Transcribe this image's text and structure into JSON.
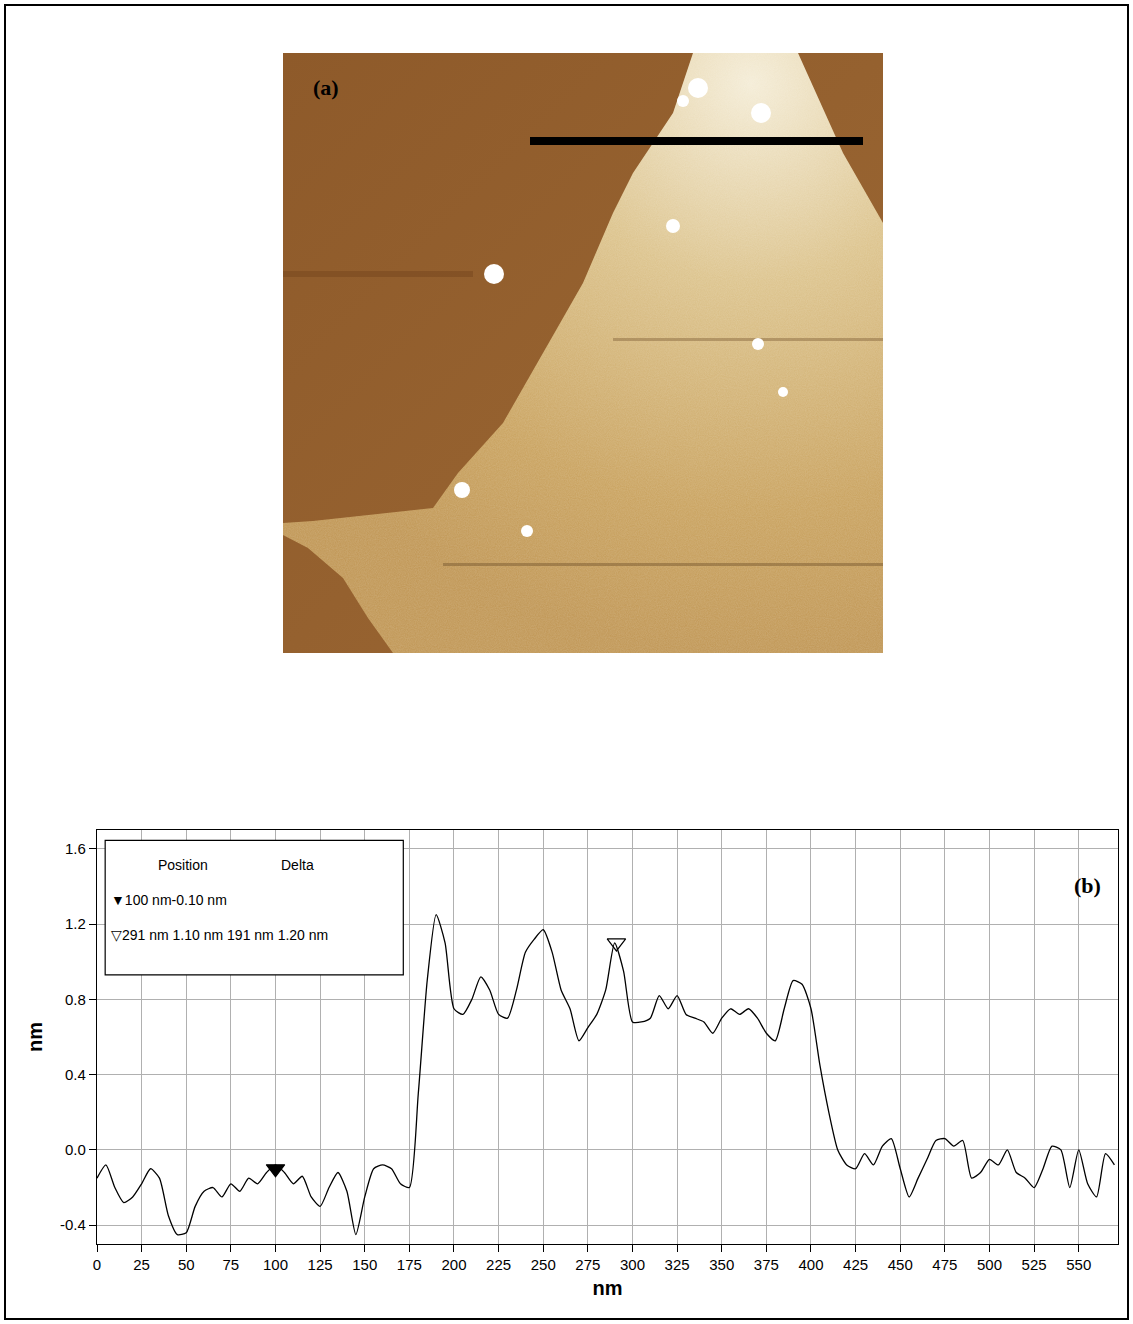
{
  "image_panel": {
    "label": "(a)"
  },
  "chart_data": {
    "type": "line",
    "panel_label": "(b)",
    "x_label": "nm",
    "y_label": "nm",
    "color": "#000000",
    "grid": true,
    "xlim": [
      0,
      572
    ],
    "ylim": [
      -0.5,
      1.7
    ],
    "xticks": [
      0,
      25,
      50,
      75,
      100,
      125,
      150,
      175,
      200,
      225,
      250,
      275,
      300,
      325,
      350,
      375,
      400,
      425,
      450,
      475,
      500,
      525,
      550
    ],
    "yticks": [
      -0.4,
      {
        "value": 0,
        "label": "0.0"
      },
      0.4,
      0.8,
      1.2,
      1.6
    ],
    "x": [
      0,
      5,
      10,
      15,
      20,
      25,
      30,
      35,
      40,
      45,
      50,
      55,
      60,
      65,
      70,
      75,
      80,
      85,
      90,
      95,
      100,
      105,
      110,
      115,
      120,
      125,
      130,
      135,
      140,
      145,
      150,
      155,
      160,
      165,
      170,
      175,
      180,
      185,
      190,
      195,
      200,
      205,
      210,
      215,
      220,
      225,
      230,
      235,
      240,
      245,
      250,
      255,
      260,
      265,
      270,
      275,
      280,
      285,
      290,
      295,
      300,
      305,
      310,
      315,
      320,
      325,
      330,
      335,
      340,
      345,
      350,
      355,
      360,
      365,
      370,
      375,
      380,
      385,
      390,
      395,
      400,
      405,
      410,
      415,
      420,
      425,
      430,
      435,
      440,
      445,
      450,
      455,
      460,
      465,
      470,
      475,
      480,
      485,
      490,
      495,
      500,
      505,
      510,
      515,
      520,
      525,
      530,
      535,
      540,
      545,
      550,
      555,
      560,
      565,
      570
    ],
    "values": [
      -0.15,
      -0.08,
      -0.2,
      -0.28,
      -0.25,
      -0.18,
      -0.1,
      -0.15,
      -0.35,
      -0.45,
      -0.44,
      -0.3,
      -0.22,
      -0.2,
      -0.25,
      -0.18,
      -0.22,
      -0.15,
      -0.18,
      -0.12,
      -0.08,
      -0.12,
      -0.18,
      -0.14,
      -0.25,
      -0.3,
      -0.2,
      -0.12,
      -0.22,
      -0.45,
      -0.25,
      -0.1,
      -0.08,
      -0.1,
      -0.18,
      -0.2,
      0.3,
      0.9,
      1.25,
      1.1,
      0.75,
      0.72,
      0.8,
      0.92,
      0.85,
      0.72,
      0.7,
      0.85,
      1.05,
      1.12,
      1.17,
      1.05,
      0.85,
      0.75,
      0.58,
      0.65,
      0.72,
      0.85,
      1.1,
      0.95,
      0.68,
      0.68,
      0.7,
      0.82,
      0.75,
      0.82,
      0.72,
      0.7,
      0.68,
      0.62,
      0.7,
      0.75,
      0.72,
      0.75,
      0.7,
      0.62,
      0.58,
      0.75,
      0.9,
      0.88,
      0.75,
      0.45,
      0.2,
      0.0,
      -0.08,
      -0.1,
      -0.02,
      -0.08,
      0.02,
      0.06,
      -0.1,
      -0.25,
      -0.15,
      -0.05,
      0.05,
      0.06,
      0.02,
      0.05,
      -0.15,
      -0.12,
      -0.05,
      -0.08,
      0.0,
      -0.12,
      -0.15,
      -0.2,
      -0.1,
      0.02,
      0.0,
      -0.2,
      0.0,
      -0.18,
      -0.25,
      -0.02,
      -0.08
    ],
    "cursor_box": {
      "header": [
        "Position",
        "Delta"
      ],
      "entries": [
        {
          "label": "▼100 nm-0.10 nm",
          "marker": "triangle-down",
          "x": 100,
          "y": -0.1
        },
        {
          "label": "▽291 nm 1.10 nm 191 nm 1.20 nm",
          "marker": "triangle-down-open",
          "x": 291,
          "y": 1.1
        }
      ]
    }
  }
}
